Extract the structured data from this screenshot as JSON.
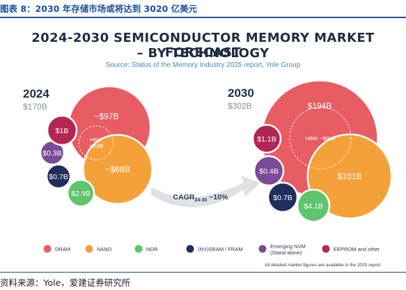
{
  "figure": {
    "caption": "图表 8：2030 年存储市场或将达到 3020 亿美元",
    "source_note": "资料来源：Yole，爱建证券研究所"
  },
  "chart_data": {
    "type": "bubble",
    "title": "2024-2030 SEMICONDUCTOR MEMORY MARKET FORECAST",
    "title_line2": "– BY TECHNOLOGY",
    "subtitle": "Source: Status of the Memory Industry 2025 report, Yole Group",
    "cagr": {
      "prefix": "CAGR",
      "sub": "24-30",
      "suffix": " ~10%"
    },
    "footnote": "All detailed market figures are available in the 2025 report.",
    "colors": {
      "DRAM": "#e85d63",
      "NAND": "#f5a13a",
      "NOR": "#5dc56d",
      "(NV)SRAM / FRAM": "#1f2f5c",
      "Emerging NVM (Stand-alone)": "#7a4b96",
      "EEPROM and other": "#b22752"
    },
    "legend": [
      {
        "name": "DRAM"
      },
      {
        "name": "NAND"
      },
      {
        "name": "NOR"
      },
      {
        "name": "(NV)SRAM / FRAM"
      },
      {
        "name": "Emerging NVM",
        "name2": "(Stand-alone)",
        "series": "Emerging NVM (Stand-alone)"
      },
      {
        "name": "EEPROM and other"
      }
    ],
    "panels": [
      {
        "year": "2024",
        "total_label": "$170B",
        "total": 170,
        "series": [
          {
            "name": "DRAM",
            "value": 97,
            "label": "~$97B"
          },
          {
            "name": "NAND",
            "value": 68,
            "label": "~$68B"
          },
          {
            "name": "NOR",
            "value": 2.9,
            "label": "$2.9B"
          },
          {
            "name": "(NV)SRAM / FRAM",
            "value": 0.7,
            "label": "$0.7B"
          },
          {
            "name": "Emerging NVM (Stand-alone)",
            "value": 0.3,
            "label": "$0.3B"
          },
          {
            "name": "EEPROM and other",
            "value": 1,
            "label": "$1B"
          }
        ],
        "hbm": {
          "line1": "HBM:",
          "line2": "<$18B",
          "value_max": 18
        }
      },
      {
        "year": "2030",
        "total_label": "$302B",
        "total": 302,
        "series": [
          {
            "name": "DRAM",
            "value": 194,
            "label": "$194B"
          },
          {
            "name": "NAND",
            "value": 101,
            "label": "$101B"
          },
          {
            "name": "NOR",
            "value": 4.1,
            "label": "$4.1B"
          },
          {
            "name": "(NV)SRAM / FRAM",
            "value": 0.7,
            "label": "$0.7B"
          },
          {
            "name": "Emerging NVM (Stand-alone)",
            "value": 0.4,
            "label": "$0.4B"
          },
          {
            "name": "EEPROM and other",
            "value": 1.1,
            "label": "$1.1B"
          }
        ],
        "hbm": {
          "line1": "HBM: ~$98B",
          "value": 98
        }
      }
    ]
  }
}
